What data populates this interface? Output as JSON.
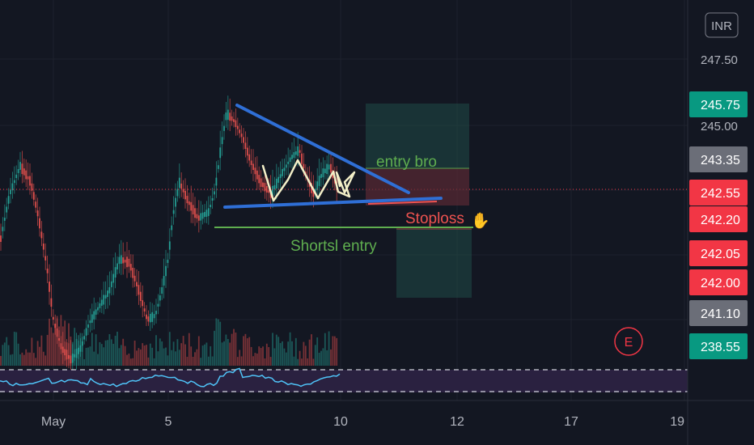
{
  "currency": "INR",
  "event_marker": "E",
  "colors": {
    "background": "#131722",
    "up": "#26a69a",
    "down": "#ef5350",
    "trendline": "#2f6fd6",
    "rsi_line": "#4fc3f7",
    "rsi_band": "#2a2140",
    "annotation_green": "#5fae4f",
    "annotation_red": "#ef5350"
  },
  "chart_data": {
    "type": "candlestick",
    "symbol_currency": "INR",
    "y_axis": {
      "ticks": [
        247.5,
        245.0
      ]
    },
    "x_axis": {
      "ticks": [
        "May",
        "5",
        "10",
        "12",
        "17",
        "19"
      ]
    },
    "price_labels": [
      {
        "value": "245.75",
        "color": "#089981"
      },
      {
        "value": "243.35",
        "color": "#6b6e78"
      },
      {
        "value": "242.55",
        "color": "#f23645"
      },
      {
        "value": "242.20",
        "color": "#f23645"
      },
      {
        "value": "242.05",
        "color": "#f23645"
      },
      {
        "value": "242.00",
        "color": "#f23645"
      },
      {
        "value": "241.10",
        "color": "#6b6e78"
      },
      {
        "value": "238.55",
        "color": "#089981"
      }
    ],
    "last_price": 242.55,
    "annotations": [
      {
        "text": "entry bro",
        "color": "#5fae4f"
      },
      {
        "text": "Stoploss",
        "color": "#ef5350",
        "emoji": "✋"
      },
      {
        "text": "Shortsl entry",
        "color": "#5fae4f"
      }
    ],
    "pattern": "descending triangle",
    "indicator": "RSI"
  }
}
